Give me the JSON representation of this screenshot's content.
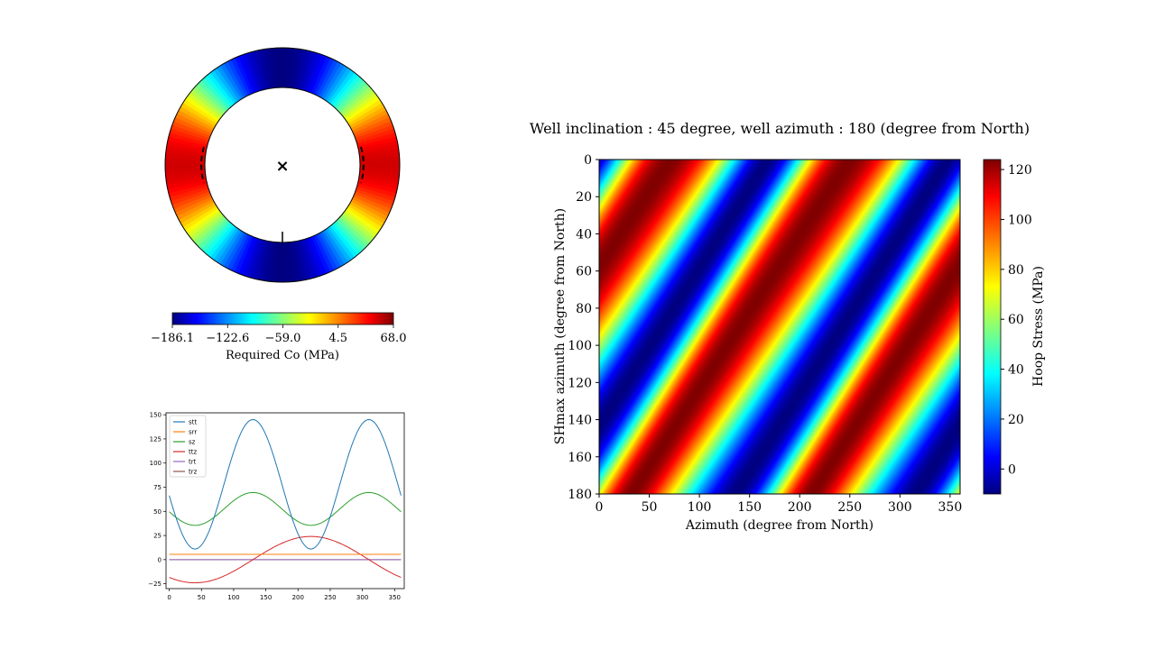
{
  "colors": {
    "jet": [
      "#00007f",
      "#0000ff",
      "#007fff",
      "#00ffff",
      "#7fff7f",
      "#ffff00",
      "#ff7f00",
      "#ff0000",
      "#7f0000"
    ],
    "stt": "#1f77b4",
    "srr": "#ff7f0e",
    "sz": "#2ca02c",
    "ttz": "#d62728",
    "trt": "#9467bd",
    "trz": "#8c564b"
  },
  "chart_data": [
    {
      "type": "heatmap",
      "name": "wellbore-required-co",
      "description_kind": "annular polar map",
      "colorbar": {
        "label": "Required Co (MPa)",
        "min": -186.1,
        "max": 68.0,
        "ticks": [
          "−186.1",
          "−122.6",
          "−59.0",
          "4.5",
          "68.0"
        ]
      },
      "marker": "×"
    },
    {
      "type": "line",
      "name": "stress-components",
      "x": [
        0,
        360
      ],
      "xlim": [
        -5,
        365
      ],
      "ylim": [
        -30,
        152
      ],
      "xticks": [
        0,
        50,
        100,
        150,
        200,
        250,
        300,
        350
      ],
      "yticks": [
        -25,
        0,
        25,
        50,
        75,
        100,
        125,
        150
      ],
      "legend_position": "top-left",
      "series": [
        {
          "name": "stt",
          "mean": 78,
          "amp": 67,
          "period": 180,
          "peak": 130
        },
        {
          "name": "srr",
          "mean": 5.5,
          "amp": 0,
          "period": 180,
          "peak": 0
        },
        {
          "name": "sz",
          "mean": 52.5,
          "amp": 17,
          "period": 180,
          "peak": 130
        },
        {
          "name": "ttz",
          "mean": 0,
          "amp": 24,
          "period": 360,
          "peak": 220
        },
        {
          "name": "trt",
          "mean": 0,
          "amp": 0,
          "period": 360,
          "peak": 0
        },
        {
          "name": "trz",
          "mean": 0,
          "amp": 0,
          "period": 360,
          "peak": 0
        }
      ]
    },
    {
      "type": "heatmap",
      "name": "hoop-stress",
      "title": "Well inclination : 45 degree, well azimuth : 180 (degree from North)",
      "xlabel": "Azimuth (degree from North)",
      "ylabel": "SHmax azimuth (degree from North)",
      "xlim": [
        0,
        360
      ],
      "ylim": [
        180,
        0
      ],
      "xticks": [
        0,
        50,
        100,
        150,
        200,
        250,
        300,
        350
      ],
      "yticks": [
        0,
        20,
        40,
        60,
        80,
        100,
        120,
        140,
        160,
        180
      ],
      "colorbar": {
        "label": "Hoop Stress (MPa)",
        "min": -10,
        "max": 124,
        "ticks": [
          0,
          20,
          40,
          60,
          80,
          100,
          120
        ]
      },
      "value_range": [
        -10,
        124
      ]
    }
  ]
}
